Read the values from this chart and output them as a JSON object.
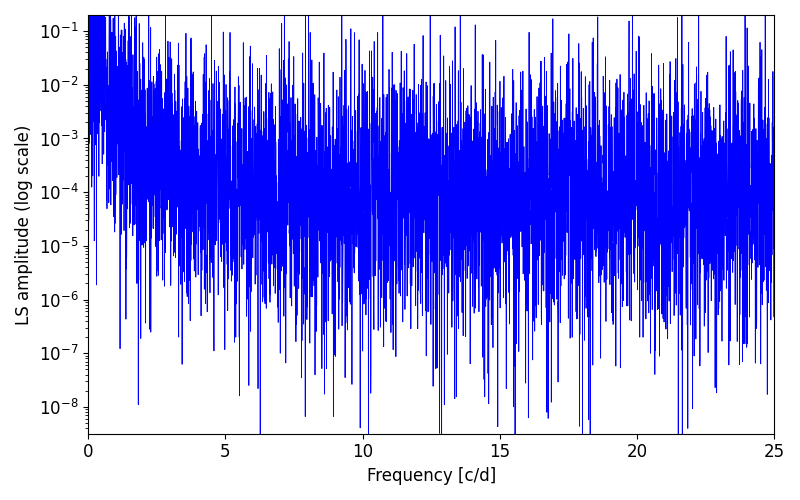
{
  "title": "",
  "xlabel": "Frequency [c/d]",
  "ylabel": "LS amplitude (log scale)",
  "line_color": "blue",
  "xlim": [
    0,
    25
  ],
  "ylim_log": [
    -8.5,
    -0.7
  ],
  "freq_min": 0.0,
  "freq_max": 25.0,
  "n_points": 5000,
  "seed": 7,
  "background_color": "#ffffff",
  "peak_amplitude": 0.12,
  "noise_floor_log": -4.0,
  "decay_rate": 1.8,
  "log_noise_std": 1.2,
  "deep_null_prob": 0.015,
  "ylabel_fontsize": 12,
  "xlabel_fontsize": 12,
  "tick_fontsize": 12
}
